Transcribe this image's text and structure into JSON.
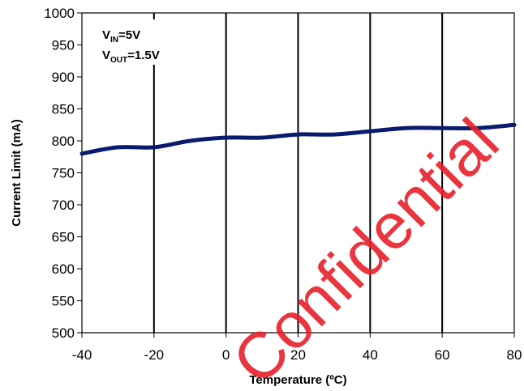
{
  "chart_data": {
    "type": "line",
    "title": "",
    "xlabel": "Temperature (ºC)",
    "ylabel": "Current Limit (mA)",
    "xlim": [
      -40,
      80
    ],
    "ylim": [
      500,
      1000
    ],
    "x_ticks": [
      -40,
      -20,
      0,
      20,
      40,
      60,
      80
    ],
    "y_ticks": [
      500,
      550,
      600,
      650,
      700,
      750,
      800,
      850,
      900,
      950,
      1000
    ],
    "x_tick_labels": [
      "-40",
      "-20",
      "0",
      "20",
      "40",
      "60",
      "80"
    ],
    "y_tick_labels": [
      "500",
      "550",
      "600",
      "650",
      "700",
      "750",
      "800",
      "850",
      "900",
      "950",
      "1000"
    ],
    "grid": "vertical lines at x ticks",
    "annotation": {
      "line1": {
        "prefix": "V",
        "sub": "IN",
        "suffix": "=5V"
      },
      "line2": {
        "prefix": "V",
        "sub": "OUT",
        "suffix": "=1.5V"
      }
    },
    "series": [
      {
        "color": "#0a1a6e",
        "x": [
          -40,
          -30,
          -20,
          -10,
          0,
          10,
          20,
          30,
          40,
          50,
          60,
          70,
          80
        ],
        "y": [
          780,
          790,
          790,
          800,
          805,
          805,
          810,
          810,
          815,
          820,
          820,
          820,
          825
        ]
      }
    ]
  },
  "watermark": "Confidential"
}
